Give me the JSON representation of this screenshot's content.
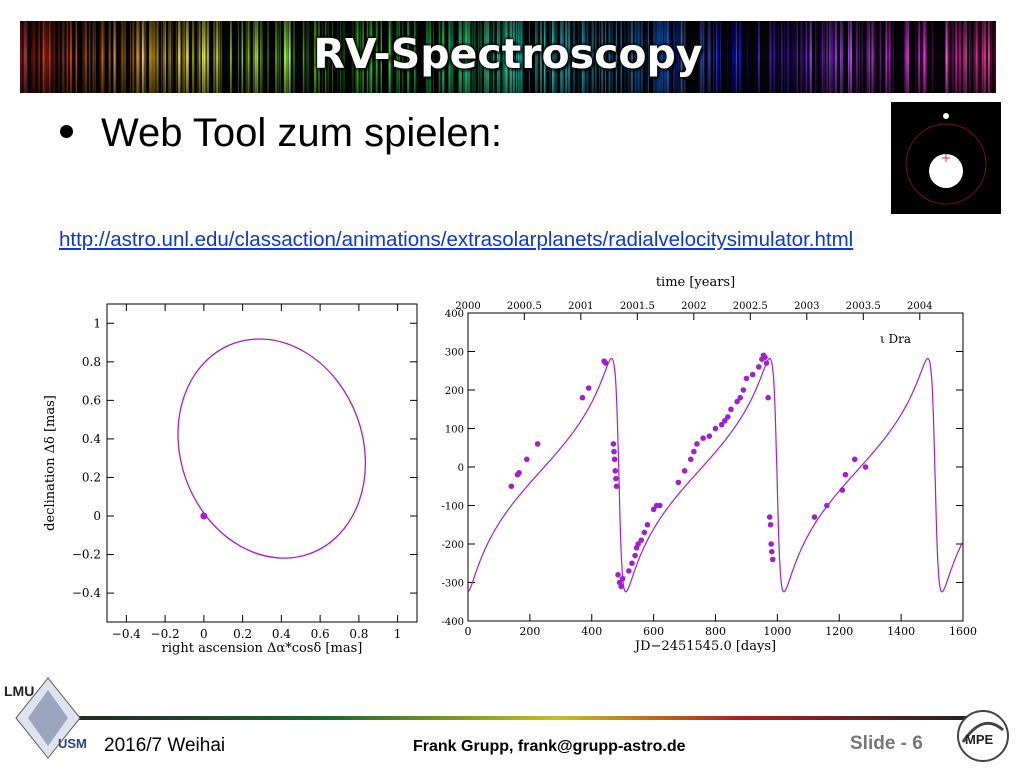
{
  "slide": {
    "title": "RV-Spectroscopy",
    "bullet": "Web Tool zum spielen:",
    "link": "http://astro.unl.edu/classaction/animations/extrasolarplanets/radialvelocitysimulator.html"
  },
  "footer": {
    "date": "2016/7 Weihai",
    "author": "Frank Grupp, frank@grupp-astro.de",
    "slide_label": "Slide - ",
    "slide_number": "6",
    "logo_left_top": "LMU",
    "logo_left_bottom": "USM",
    "logo_right": "MPE"
  },
  "chart_data": [
    {
      "type": "line",
      "xlabel": "right ascension Δα*cosδ [mas]",
      "ylabel": "declination Δδ [mas]",
      "xlim": [
        -0.5,
        1.1
      ],
      "ylim": [
        -0.55,
        1.1
      ],
      "xticks": [
        -0.4,
        -0.2,
        0,
        0.2,
        0.4,
        0.6,
        0.8,
        1
      ],
      "yticks": [
        -0.4,
        -0.2,
        0,
        0.2,
        0.4,
        0.6,
        0.8,
        1
      ],
      "orbit_ellipse": {
        "center": [
          0.35,
          0.35
        ],
        "rx": 0.47,
        "ry": 0.58,
        "rotation_deg": -20
      },
      "star_point": [
        0,
        0
      ],
      "color": "#a020d0"
    },
    {
      "type": "scatter",
      "title": "time [years]",
      "xlabel": "JD−2451545.0 [days]",
      "annotation": "ι Dra",
      "xlim": [
        0,
        1600
      ],
      "ylim": [
        -400,
        400
      ],
      "xticks": [
        0,
        200,
        400,
        600,
        800,
        1000,
        1200,
        1400,
        1600
      ],
      "yticks": [
        -400,
        -300,
        -200,
        -100,
        0,
        100,
        200,
        300,
        400
      ],
      "top_ticks": [
        "2000",
        "2000.5",
        "2001",
        "2001.5",
        "2002",
        "2002.5",
        "2003",
        "2003.5",
        "2004"
      ],
      "period_days": 511,
      "color": "#a020d0",
      "points": [
        [
          140,
          -50
        ],
        [
          160,
          -20
        ],
        [
          165,
          -15
        ],
        [
          190,
          20
        ],
        [
          225,
          60
        ],
        [
          370,
          180
        ],
        [
          390,
          205
        ],
        [
          440,
          275
        ],
        [
          445,
          270
        ],
        [
          470,
          60
        ],
        [
          472,
          40
        ],
        [
          474,
          20
        ],
        [
          476,
          -10
        ],
        [
          478,
          -30
        ],
        [
          480,
          -50
        ],
        [
          485,
          -280
        ],
        [
          490,
          -300
        ],
        [
          495,
          -310
        ],
        [
          500,
          -290
        ],
        [
          520,
          -270
        ],
        [
          530,
          -250
        ],
        [
          540,
          -230
        ],
        [
          545,
          -210
        ],
        [
          550,
          -200
        ],
        [
          560,
          -190
        ],
        [
          570,
          -170
        ],
        [
          580,
          -150
        ],
        [
          600,
          -110
        ],
        [
          610,
          -100
        ],
        [
          620,
          -100
        ],
        [
          680,
          -40
        ],
        [
          700,
          -10
        ],
        [
          720,
          20
        ],
        [
          730,
          40
        ],
        [
          740,
          60
        ],
        [
          760,
          75
        ],
        [
          780,
          80
        ],
        [
          800,
          100
        ],
        [
          820,
          110
        ],
        [
          830,
          120
        ],
        [
          840,
          130
        ],
        [
          850,
          150
        ],
        [
          870,
          170
        ],
        [
          880,
          180
        ],
        [
          890,
          200
        ],
        [
          900,
          230
        ],
        [
          920,
          240
        ],
        [
          940,
          260
        ],
        [
          950,
          280
        ],
        [
          955,
          290
        ],
        [
          960,
          285
        ],
        [
          965,
          270
        ],
        [
          970,
          180
        ],
        [
          975,
          -130
        ],
        [
          978,
          -150
        ],
        [
          980,
          -200
        ],
        [
          982,
          -220
        ],
        [
          985,
          -240
        ],
        [
          1120,
          -130
        ],
        [
          1160,
          -100
        ],
        [
          1210,
          -60
        ],
        [
          1220,
          -20
        ],
        [
          1250,
          20
        ],
        [
          1285,
          0
        ]
      ]
    }
  ]
}
